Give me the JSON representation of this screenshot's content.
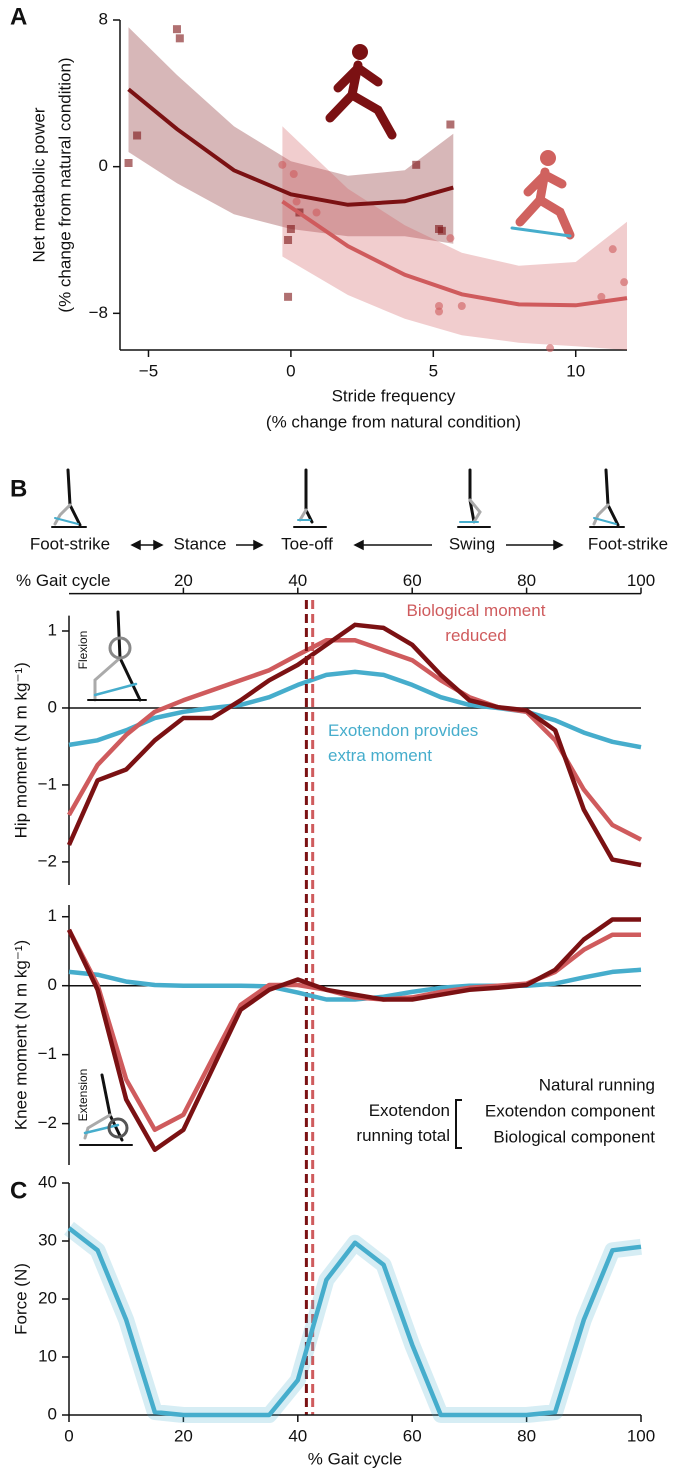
{
  "chart_data": [
    {
      "type": "scatter",
      "panel": "A",
      "xlabel": [
        "Stride frequency",
        "(% change from natural condition)"
      ],
      "ylabel": [
        "Net metabolic power",
        "(% change from natural condition)"
      ],
      "xlim": [
        -6,
        11.8
      ],
      "ylim": [
        -10,
        8
      ],
      "xticks": [
        {
          "value": -5,
          "label": "−5"
        },
        0,
        5,
        10
      ],
      "yticks": [
        {
          "value": -8,
          "label": "−8"
        },
        0,
        8
      ],
      "series": [
        {
          "color": "#7b1113",
          "marker": "square",
          "x": [
            -5.7,
            -5.4,
            -4.0,
            -3.9,
            -0.1,
            -0.1,
            0.0,
            0.3,
            4.4,
            5.2,
            5.3,
            5.6
          ],
          "y": [
            0.2,
            1.7,
            7.5,
            7.0,
            -7.1,
            -4.0,
            -3.4,
            -2.5,
            0.1,
            -3.4,
            -3.5,
            2.3
          ]
        },
        {
          "color": "#cf5b5d",
          "marker": "circle",
          "x": [
            -0.3,
            0.1,
            0.2,
            0.9,
            5.2,
            5.2,
            5.6,
            6.0,
            9.1,
            10.9,
            11.3,
            11.7
          ],
          "y": [
            0.1,
            -0.4,
            -1.9,
            -2.5,
            -7.6,
            -7.9,
            -3.9,
            -7.6,
            -9.9,
            -7.1,
            -4.5,
            -6.3
          ]
        }
      ],
      "fits": [
        {
          "color": "#7b1113",
          "x": [
            -5.7,
            -4,
            -2,
            0,
            2,
            4,
            5.7
          ],
          "y": [
            4.22,
            2.05,
            -0.2,
            -1.51,
            -2.08,
            -1.89,
            -1.14
          ],
          "upper": [
            7.6,
            5.0,
            2.2,
            0.3,
            -0.5,
            -0.2,
            1.8
          ],
          "lower": [
            0.8,
            -0.9,
            -2.6,
            -3.4,
            -3.8,
            -3.8,
            -4.2
          ]
        },
        {
          "color": "#cf5b5d",
          "x": [
            -0.3,
            2,
            4,
            6,
            8,
            10,
            11.8
          ],
          "y": [
            -1.9,
            -4.34,
            -5.9,
            -6.96,
            -7.51,
            -7.56,
            -7.17
          ],
          "upper": [
            2.2,
            -1.2,
            -3.2,
            -4.7,
            -5.4,
            -5.2,
            -3.0
          ],
          "lower": [
            -4.9,
            -7.0,
            -8.3,
            -9.2,
            -9.6,
            -9.8,
            -10.0
          ]
        }
      ]
    },
    {
      "type": "line",
      "panel": "B",
      "phases": [
        "Foot-strike",
        "Stance",
        "Toe-off",
        "Swing",
        "Foot-strike"
      ],
      "xlabel": "% Gait cycle",
      "xaxis": "top",
      "ylabel": "Hip moment (N m kg⁻¹)",
      "icon_label": "Flexion",
      "xlim": [
        0,
        100
      ],
      "ylim": [
        -2.3,
        1.2
      ],
      "xticks": [
        20,
        40,
        60,
        80,
        100
      ],
      "yticks": [
        {
          "value": -2,
          "label": "−2"
        },
        {
          "value": -1,
          "label": "−1"
        },
        0,
        1
      ],
      "zero_line": true,
      "x": [
        0,
        5,
        10,
        15,
        20,
        25,
        30,
        35,
        40,
        45,
        50,
        55,
        60,
        65,
        70,
        75,
        80,
        85,
        90,
        95,
        100
      ],
      "series": [
        {
          "color": "#46adcc",
          "values": [
            -0.48,
            -0.42,
            -0.29,
            -0.13,
            -0.05,
            0,
            0.04,
            0.14,
            0.3,
            0.43,
            0.47,
            0.43,
            0.3,
            0.14,
            0.04,
            0,
            -0.05,
            -0.16,
            -0.32,
            -0.44,
            -0.51
          ]
        },
        {
          "color": "#cf5b5d",
          "values": [
            -1.39,
            -0.74,
            -0.35,
            -0.05,
            0.1,
            0.23,
            0.36,
            0.49,
            0.69,
            0.88,
            0.88,
            0.75,
            0.62,
            0.36,
            0.14,
            0.01,
            -0.05,
            -0.42,
            -1.06,
            -1.52,
            -1.71
          ]
        },
        {
          "color": "#7b1113",
          "values": [
            -1.78,
            -0.94,
            -0.8,
            -0.42,
            -0.13,
            -0.13,
            0.1,
            0.36,
            0.56,
            0.82,
            1.08,
            1.04,
            0.82,
            0.43,
            0.1,
            0.01,
            -0.03,
            -0.29,
            -1.32,
            -1.97,
            -2.04
          ]
        }
      ],
      "annotations": [
        {
          "text": "Biological moment reduced",
          "color": "#cf5b5d"
        },
        {
          "text": "Exotendon provides extra moment",
          "color": "#46adcc"
        }
      ],
      "vlines": [
        {
          "x": 41.5,
          "color": "#7b1113"
        },
        {
          "x": 42.6,
          "color": "#cf5b5d"
        }
      ]
    },
    {
      "type": "line",
      "ylabel": "Knee moment (N m kg⁻¹)",
      "icon_label": "Extension",
      "xlim": [
        0,
        100
      ],
      "ylim": [
        -2.6,
        1.17
      ],
      "yticks": [
        {
          "value": -2,
          "label": "−2"
        },
        {
          "value": -1,
          "label": "−1"
        },
        0,
        1
      ],
      "zero_line": true,
      "x": [
        0,
        5,
        10,
        15,
        20,
        25,
        30,
        35,
        40,
        45,
        50,
        55,
        60,
        65,
        70,
        75,
        80,
        85,
        90,
        95,
        100
      ],
      "legend_group": "Exotendon running total",
      "series": [
        {
          "name": "Exotendon component",
          "color": "#46adcc",
          "values": [
            0.2,
            0.16,
            0.06,
            0.01,
            0,
            0,
            0,
            -0.01,
            -0.1,
            -0.2,
            -0.2,
            -0.16,
            -0.09,
            -0.03,
            0,
            0,
            0,
            0.03,
            0.12,
            0.2,
            0.23
          ]
        },
        {
          "name": "Biological component",
          "color": "#cf5b5d",
          "values": [
            0.81,
            0.01,
            -1.36,
            -2.09,
            -1.87,
            -1.07,
            -0.28,
            0.01,
            0.01,
            -0.06,
            -0.17,
            -0.2,
            -0.17,
            -0.09,
            -0.03,
            0,
            0.03,
            0.2,
            0.52,
            0.74,
            0.74
          ]
        },
        {
          "name": "Natural running",
          "color": "#7b1113",
          "values": [
            0.81,
            -0.06,
            -1.65,
            -2.38,
            -2.09,
            -1.22,
            -0.35,
            -0.06,
            0.09,
            -0.06,
            -0.13,
            -0.2,
            -0.2,
            -0.13,
            -0.06,
            -0.03,
            0.01,
            0.23,
            0.67,
            0.96,
            0.96
          ]
        }
      ]
    },
    {
      "type": "line",
      "panel": "C",
      "xlabel": "% Gait cycle",
      "ylabel": "Force (N)",
      "xlim": [
        0,
        100
      ],
      "ylim": [
        0,
        40
      ],
      "xticks": [
        0,
        20,
        40,
        60,
        80,
        100
      ],
      "yticks": [
        0,
        10,
        20,
        30,
        40
      ],
      "x": [
        0,
        5,
        10,
        15,
        20,
        25,
        30,
        35,
        40,
        45,
        50,
        55,
        60,
        65,
        70,
        75,
        80,
        85,
        90,
        95,
        100
      ],
      "series": [
        {
          "color": "#46adcc",
          "values": [
            32.2,
            28.4,
            16.4,
            0.5,
            0,
            0,
            0,
            0,
            6,
            23.3,
            29.7,
            25.9,
            12.1,
            0,
            0,
            0,
            0,
            0.5,
            16.4,
            28.4,
            29
          ]
        }
      ]
    }
  ]
}
